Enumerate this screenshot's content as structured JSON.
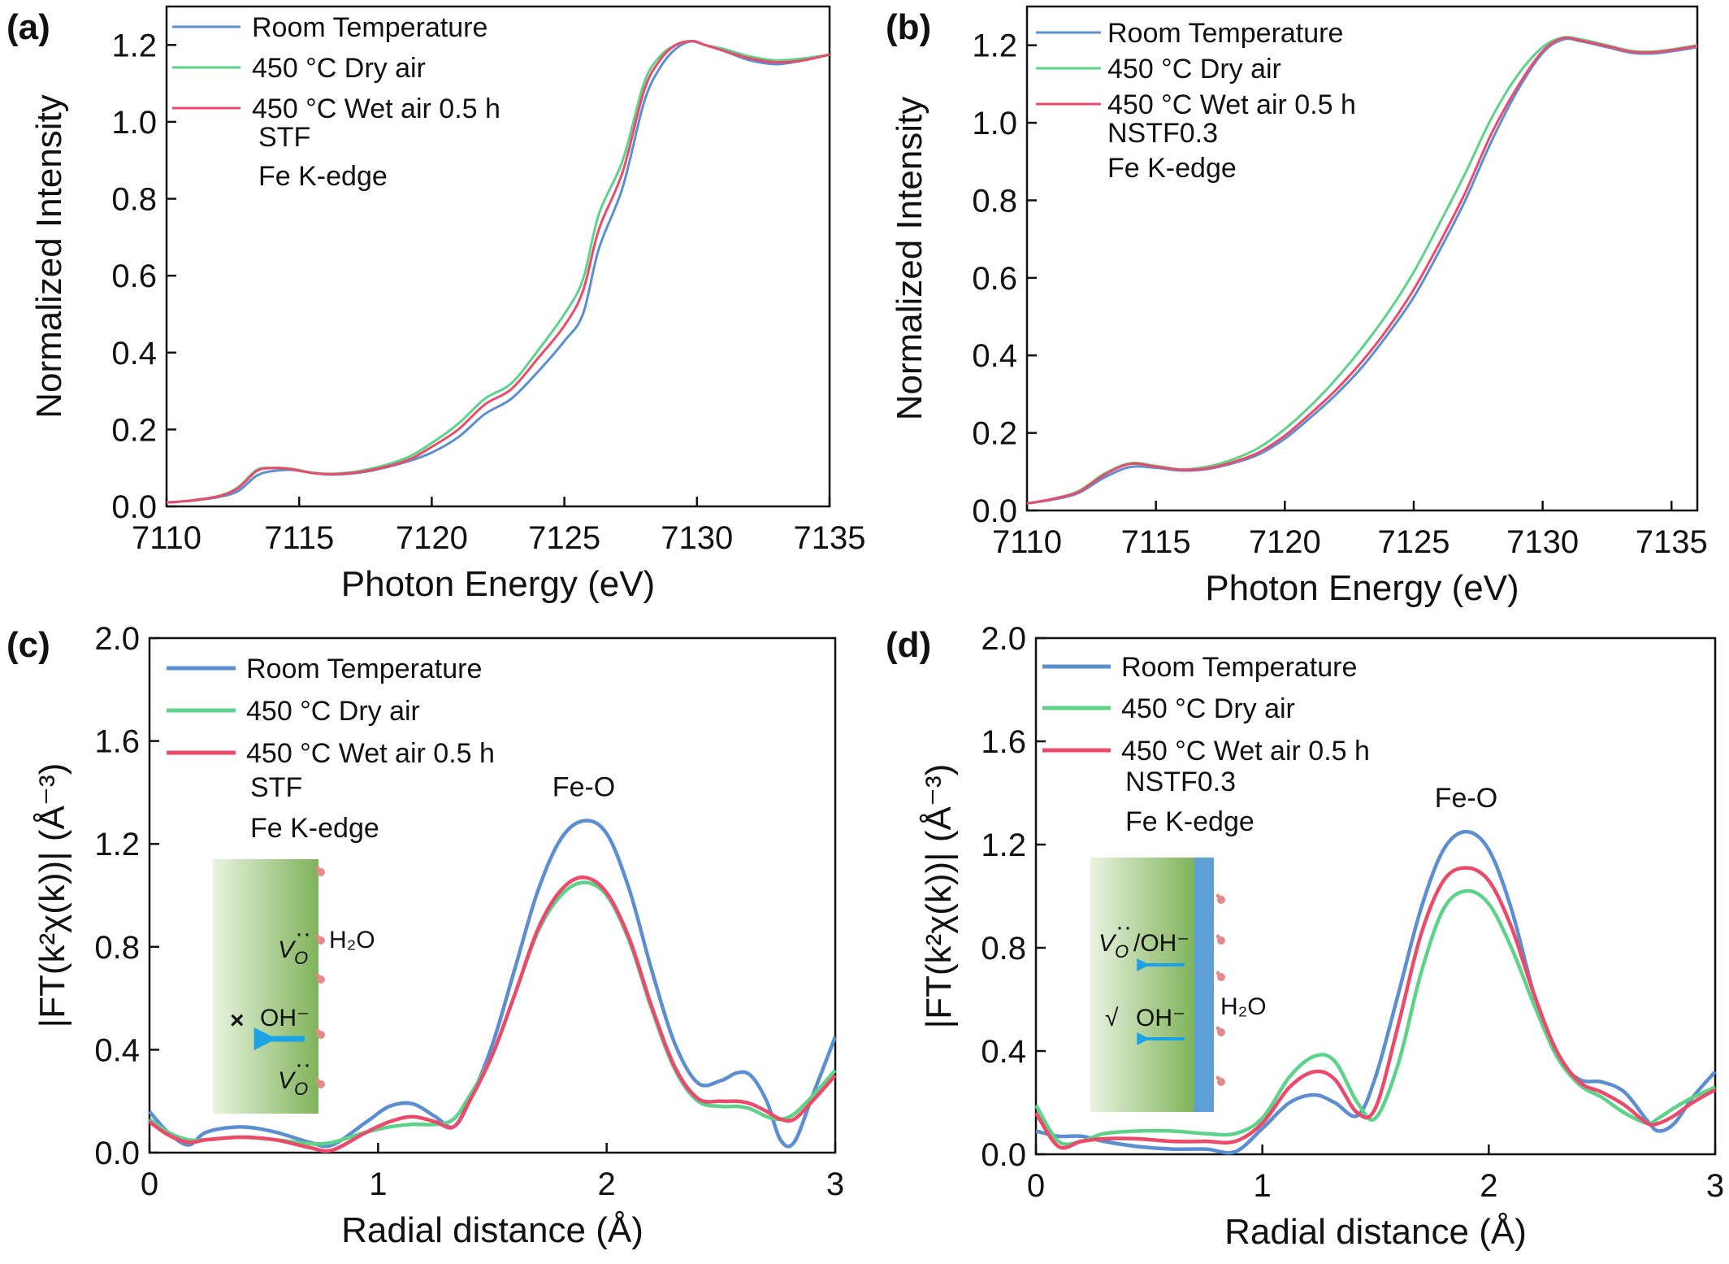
{
  "colors": {
    "room": "#5b8fd1",
    "dry": "#5dd38a",
    "wet": "#ec4a6b",
    "axis": "#111111",
    "arrow": "#1ba3e6",
    "cross": "#e23b3b",
    "check": "#d42020",
    "film_dark": "#7fb35a",
    "film_light": "#eaf3e0",
    "blue_layer": "#5e9fd7",
    "water": "#e48a8a"
  },
  "chart_data": [
    {
      "id": "a",
      "type": "line",
      "panel_label": "(a)",
      "xlabel": "Photon Energy (eV)",
      "ylabel": "Normalized Intensity",
      "xlim": [
        7110,
        7135
      ],
      "ylim": [
        0,
        1.3
      ],
      "xticks": [
        7110,
        7115,
        7120,
        7125,
        7130,
        7135
      ],
      "yticks": [
        0.0,
        0.2,
        0.4,
        0.6,
        0.8,
        1.0,
        1.2
      ],
      "ytick_labels": [
        "0.0",
        "0.2",
        "0.4",
        "0.6",
        "0.8",
        "1.0",
        "1.2"
      ],
      "notes": [
        "STF",
        "Fe K-edge"
      ],
      "legend": [
        "Room Temperature",
        "450 °C Dry air",
        "450 °C Wet air 0.5 h"
      ],
      "series": [
        {
          "name": "Room Temperature",
          "x": [
            7110,
            7111,
            7112,
            7112.7,
            7113.4,
            7114,
            7114.7,
            7115.5,
            7116.3,
            7117.5,
            7119,
            7120,
            7121,
            7122,
            7123,
            7124,
            7125,
            7125.7,
            7126.3,
            7127.2,
            7128,
            7128.6,
            7129.2,
            7129.8,
            7130.3,
            7131,
            7132,
            7133,
            7134,
            7135
          ],
          "y": [
            0.01,
            0.015,
            0.025,
            0.04,
            0.08,
            0.092,
            0.095,
            0.087,
            0.083,
            0.09,
            0.115,
            0.14,
            0.18,
            0.24,
            0.28,
            0.35,
            0.43,
            0.5,
            0.67,
            0.83,
            1.05,
            1.14,
            1.19,
            1.21,
            1.2,
            1.185,
            1.16,
            1.15,
            1.16,
            1.175
          ]
        },
        {
          "name": "450 °C Dry air",
          "x": [
            7110,
            7111,
            7112,
            7112.7,
            7113.4,
            7114,
            7114.7,
            7115.5,
            7116.3,
            7117.5,
            7119,
            7120,
            7121,
            7122,
            7123,
            7124,
            7125,
            7125.7,
            7126.3,
            7127.2,
            7128,
            7128.6,
            7129.2,
            7129.8,
            7130.3,
            7131,
            7132,
            7133,
            7134,
            7135
          ],
          "y": [
            0.01,
            0.016,
            0.028,
            0.05,
            0.095,
            0.1,
            0.098,
            0.088,
            0.085,
            0.095,
            0.125,
            0.165,
            0.215,
            0.28,
            0.32,
            0.405,
            0.5,
            0.59,
            0.76,
            0.9,
            1.1,
            1.17,
            1.2,
            1.21,
            1.2,
            1.19,
            1.17,
            1.16,
            1.165,
            1.175
          ]
        },
        {
          "name": "450 °C Wet air 0.5 h",
          "x": [
            7110,
            7111,
            7112,
            7112.7,
            7113.4,
            7114,
            7114.7,
            7115.5,
            7116.3,
            7117.5,
            7119,
            7120,
            7121,
            7122,
            7123,
            7124,
            7125,
            7125.7,
            7126.3,
            7127.2,
            7128,
            7128.6,
            7129.2,
            7129.8,
            7130.3,
            7131,
            7132,
            7133,
            7134,
            7135
          ],
          "y": [
            0.01,
            0.016,
            0.027,
            0.048,
            0.092,
            0.1,
            0.097,
            0.087,
            0.084,
            0.092,
            0.118,
            0.155,
            0.2,
            0.265,
            0.305,
            0.385,
            0.47,
            0.56,
            0.72,
            0.87,
            1.08,
            1.16,
            1.2,
            1.21,
            1.2,
            1.185,
            1.165,
            1.155,
            1.16,
            1.175
          ]
        }
      ]
    },
    {
      "id": "b",
      "type": "line",
      "panel_label": "(b)",
      "xlabel": "Photon Energy (eV)",
      "ylabel": "Normalized Intensity",
      "xlim": [
        7110,
        7136
      ],
      "ylim": [
        0,
        1.3
      ],
      "xticks": [
        7110,
        7115,
        7120,
        7125,
        7130,
        7135
      ],
      "yticks": [
        0.0,
        0.2,
        0.4,
        0.6,
        0.8,
        1.0,
        1.2
      ],
      "ytick_labels": [
        "0.0",
        "0.2",
        "0.4",
        "0.6",
        "0.8",
        "1.0",
        "1.2"
      ],
      "notes": [
        "NSTF0.3",
        "Fe K-edge"
      ],
      "legend": [
        "Room Temperature",
        "450 °C Dry air",
        "450 °C Wet air 0.5 h"
      ],
      "series": [
        {
          "name": "Room Temperature",
          "x": [
            7110,
            7111,
            7112,
            7113,
            7114,
            7115,
            7116,
            7117,
            7118,
            7119,
            7120,
            7121,
            7122,
            7123,
            7124,
            7125,
            7126,
            7127,
            7128,
            7129,
            7130,
            7130.8,
            7131.5,
            7132.5,
            7133.5,
            7134.5,
            7136
          ],
          "y": [
            0.018,
            0.028,
            0.045,
            0.085,
            0.112,
            0.11,
            0.103,
            0.107,
            0.122,
            0.145,
            0.185,
            0.24,
            0.3,
            0.37,
            0.455,
            0.55,
            0.67,
            0.8,
            0.95,
            1.08,
            1.18,
            1.215,
            1.21,
            1.195,
            1.18,
            1.18,
            1.195
          ]
        },
        {
          "name": "450 °C Dry air",
          "x": [
            7110,
            7111,
            7112,
            7113,
            7114,
            7115,
            7116,
            7117,
            7118,
            7119,
            7120,
            7121,
            7122,
            7123,
            7124,
            7125,
            7126,
            7127,
            7128,
            7129,
            7130,
            7130.8,
            7131.5,
            7132.5,
            7133.5,
            7134.5,
            7136
          ],
          "y": [
            0.018,
            0.03,
            0.05,
            0.095,
            0.122,
            0.115,
            0.106,
            0.113,
            0.132,
            0.162,
            0.21,
            0.27,
            0.34,
            0.42,
            0.51,
            0.615,
            0.74,
            0.87,
            1.01,
            1.12,
            1.195,
            1.22,
            1.215,
            1.2,
            1.185,
            1.185,
            1.2
          ]
        },
        {
          "name": "450 °C Wet air 0.5 h",
          "x": [
            7110,
            7111,
            7112,
            7113,
            7114,
            7115,
            7116,
            7117,
            7118,
            7119,
            7120,
            7121,
            7122,
            7123,
            7124,
            7125,
            7126,
            7127,
            7128,
            7129,
            7130,
            7130.8,
            7131.5,
            7132.5,
            7133.5,
            7134.5,
            7136
          ],
          "y": [
            0.018,
            0.03,
            0.048,
            0.092,
            0.12,
            0.113,
            0.105,
            0.109,
            0.125,
            0.15,
            0.193,
            0.25,
            0.312,
            0.385,
            0.47,
            0.57,
            0.69,
            0.82,
            0.97,
            1.09,
            1.185,
            1.218,
            1.212,
            1.198,
            1.183,
            1.183,
            1.198
          ]
        }
      ]
    },
    {
      "id": "c",
      "type": "line",
      "panel_label": "(c)",
      "xlabel": "Radial distance (Å)",
      "ylabel": "|FT(k²χ(k))| (Å⁻³)",
      "xlim": [
        0,
        3
      ],
      "ylim": [
        0,
        2.0
      ],
      "xticks": [
        0,
        1,
        2,
        3
      ],
      "yticks": [
        0.0,
        0.4,
        0.8,
        1.2,
        1.6,
        2.0
      ],
      "ytick_labels": [
        "0.0",
        "0.4",
        "0.8",
        "1.2",
        "1.6",
        "2.0"
      ],
      "notes": [
        "STF",
        "Fe K-edge"
      ],
      "peak_label": "Fe-O",
      "peak_at": [
        1.9,
        1.29
      ],
      "legend": [
        "Room Temperature",
        "450 °C Dry air",
        "450 °C Wet air 0.5 h"
      ],
      "inset": {
        "label_h2o": "H₂O",
        "label_vo": "V",
        "label_oh": "OH⁻"
      },
      "series": [
        {
          "name": "Room Temperature",
          "x": [
            0,
            0.08,
            0.17,
            0.25,
            0.4,
            0.55,
            0.7,
            0.8,
            0.95,
            1.05,
            1.15,
            1.25,
            1.33,
            1.4,
            1.5,
            1.6,
            1.7,
            1.8,
            1.9,
            2.0,
            2.1,
            2.2,
            2.3,
            2.4,
            2.5,
            2.57,
            2.63,
            2.7,
            2.76,
            2.82,
            2.9,
            3.0
          ],
          "y": [
            0.16,
            0.08,
            0.03,
            0.08,
            0.1,
            0.08,
            0.04,
            0.03,
            0.12,
            0.18,
            0.19,
            0.14,
            0.1,
            0.2,
            0.42,
            0.72,
            1.02,
            1.22,
            1.29,
            1.24,
            1.02,
            0.7,
            0.42,
            0.27,
            0.28,
            0.31,
            0.3,
            0.2,
            0.05,
            0.04,
            0.22,
            0.45
          ]
        },
        {
          "name": "450 °C Dry air",
          "x": [
            0,
            0.08,
            0.17,
            0.25,
            0.4,
            0.55,
            0.7,
            0.8,
            0.95,
            1.05,
            1.15,
            1.25,
            1.33,
            1.4,
            1.5,
            1.6,
            1.7,
            1.8,
            1.9,
            2.0,
            2.1,
            2.2,
            2.3,
            2.4,
            2.5,
            2.57,
            2.63,
            2.7,
            2.76,
            2.82,
            2.9,
            3.0
          ],
          "y": [
            0.13,
            0.08,
            0.05,
            0.05,
            0.06,
            0.05,
            0.035,
            0.04,
            0.08,
            0.1,
            0.11,
            0.11,
            0.13,
            0.22,
            0.38,
            0.62,
            0.86,
            1.0,
            1.05,
            1.0,
            0.82,
            0.55,
            0.32,
            0.2,
            0.18,
            0.18,
            0.17,
            0.14,
            0.13,
            0.15,
            0.22,
            0.32
          ]
        },
        {
          "name": "450 °C Wet air 0.5 h",
          "x": [
            0,
            0.08,
            0.17,
            0.25,
            0.4,
            0.55,
            0.7,
            0.8,
            0.95,
            1.05,
            1.15,
            1.25,
            1.33,
            1.4,
            1.5,
            1.6,
            1.7,
            1.8,
            1.9,
            2.0,
            2.1,
            2.2,
            2.3,
            2.4,
            2.5,
            2.57,
            2.63,
            2.7,
            2.76,
            2.82,
            2.9,
            3.0
          ],
          "y": [
            0.12,
            0.07,
            0.04,
            0.05,
            0.06,
            0.05,
            0.02,
            0.01,
            0.08,
            0.12,
            0.14,
            0.12,
            0.1,
            0.2,
            0.38,
            0.62,
            0.87,
            1.02,
            1.07,
            1.01,
            0.83,
            0.56,
            0.33,
            0.21,
            0.2,
            0.2,
            0.19,
            0.16,
            0.13,
            0.13,
            0.2,
            0.3
          ]
        }
      ]
    },
    {
      "id": "d",
      "type": "line",
      "panel_label": "(d)",
      "xlabel": "Radial distance (Å)",
      "ylabel": "|FT(k²χ(k))| (Å⁻³)",
      "xlim": [
        0,
        3
      ],
      "ylim": [
        0,
        2.0
      ],
      "xticks": [
        0,
        1,
        2,
        3
      ],
      "yticks": [
        0.0,
        0.4,
        0.8,
        1.2,
        1.6,
        2.0
      ],
      "ytick_labels": [
        "0.0",
        "0.4",
        "0.8",
        "1.2",
        "1.6",
        "2.0"
      ],
      "notes": [
        "NSTF0.3",
        "Fe K-edge"
      ],
      "peak_label": "Fe-O",
      "peak_at": [
        1.9,
        1.25
      ],
      "legend": [
        "Room Temperature",
        "450 °C Dry air",
        "450 °C Wet air 0.5 h"
      ],
      "inset": {
        "label_h2o": "H₂O",
        "label_vo": "V",
        "label_oh": "OH⁻",
        "label_vo_oh_suffix": "/OH⁻",
        "check_mark": "√"
      },
      "series": [
        {
          "name": "Room Temperature",
          "x": [
            0,
            0.1,
            0.2,
            0.3,
            0.45,
            0.6,
            0.75,
            0.88,
            1.0,
            1.12,
            1.23,
            1.32,
            1.42,
            1.5,
            1.6,
            1.7,
            1.8,
            1.9,
            2.0,
            2.1,
            2.2,
            2.3,
            2.4,
            2.5,
            2.6,
            2.7,
            2.75,
            2.82,
            2.9,
            3.0
          ],
          "y": [
            0.09,
            0.07,
            0.07,
            0.05,
            0.03,
            0.02,
            0.02,
            0.01,
            0.1,
            0.2,
            0.23,
            0.2,
            0.15,
            0.3,
            0.62,
            0.95,
            1.18,
            1.25,
            1.18,
            0.95,
            0.62,
            0.38,
            0.29,
            0.28,
            0.24,
            0.13,
            0.09,
            0.12,
            0.22,
            0.32
          ]
        },
        {
          "name": "450 °C Dry air",
          "x": [
            0,
            0.1,
            0.2,
            0.3,
            0.45,
            0.6,
            0.75,
            0.88,
            1.0,
            1.12,
            1.23,
            1.32,
            1.42,
            1.5,
            1.6,
            1.7,
            1.8,
            1.9,
            2.0,
            2.1,
            2.2,
            2.3,
            2.4,
            2.5,
            2.6,
            2.7,
            2.75,
            2.82,
            2.9,
            3.0
          ],
          "y": [
            0.19,
            0.05,
            0.05,
            0.08,
            0.09,
            0.09,
            0.08,
            0.08,
            0.14,
            0.3,
            0.38,
            0.36,
            0.2,
            0.14,
            0.35,
            0.7,
            0.95,
            1.02,
            0.97,
            0.8,
            0.58,
            0.38,
            0.27,
            0.22,
            0.16,
            0.12,
            0.14,
            0.18,
            0.22,
            0.26
          ]
        },
        {
          "name": "450 °C Wet air 0.5 h",
          "x": [
            0,
            0.1,
            0.2,
            0.3,
            0.45,
            0.6,
            0.75,
            0.88,
            1.0,
            1.12,
            1.23,
            1.32,
            1.42,
            1.5,
            1.6,
            1.7,
            1.8,
            1.9,
            2.0,
            2.1,
            2.2,
            2.3,
            2.4,
            2.5,
            2.6,
            2.7,
            2.75,
            2.82,
            2.9,
            3.0
          ],
          "y": [
            0.16,
            0.03,
            0.05,
            0.06,
            0.06,
            0.05,
            0.05,
            0.05,
            0.12,
            0.26,
            0.32,
            0.29,
            0.16,
            0.18,
            0.5,
            0.85,
            1.06,
            1.11,
            1.06,
            0.88,
            0.62,
            0.4,
            0.28,
            0.24,
            0.19,
            0.12,
            0.12,
            0.15,
            0.2,
            0.25
          ]
        }
      ]
    }
  ]
}
